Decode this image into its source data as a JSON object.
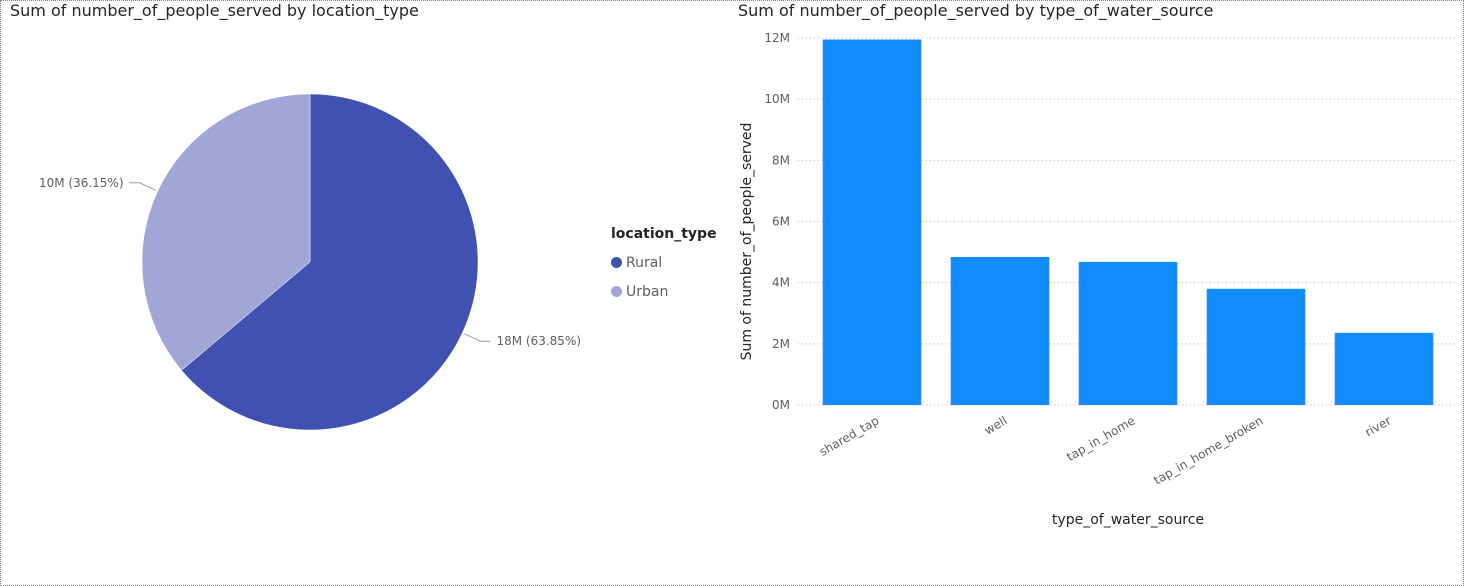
{
  "charts": [
    {
      "title": "Sum of number_of_people_served by location_type",
      "legend": {
        "title": "location_type"
      },
      "colors": [
        "#4051b1",
        "#a1a6d7"
      ]
    },
    {
      "title": "Sum of number_of_people_served by type_of_water_source",
      "bar_color": "#118dff",
      "grid_color": "#e8a0a0"
    }
  ],
  "chart_data": [
    {
      "type": "pie",
      "title": "Sum of number_of_people_served by location_type",
      "legend_title": "location_type",
      "legend_position": "right",
      "slices": [
        {
          "label": "Rural",
          "value": 18000000,
          "percent": 63.85,
          "data_label": "18M (63.85%)",
          "color": "#4051b1"
        },
        {
          "label": "Urban",
          "value": 10000000,
          "percent": 36.15,
          "data_label": "10M (36.15%)",
          "color": "#a1a6d7"
        }
      ]
    },
    {
      "type": "bar",
      "title": "Sum of number_of_people_served by type_of_water_source",
      "xlabel": "type_of_water_source",
      "ylabel": "Sum of number_of_people_served",
      "categories": [
        "shared_tap",
        "well",
        "tap_in_home",
        "tap_in_home_broken",
        "river"
      ],
      "values": [
        11950000,
        4840000,
        4680000,
        3800000,
        2360000
      ],
      "ylim": [
        0,
        12000000
      ],
      "yticks": [
        0,
        2000000,
        4000000,
        6000000,
        8000000,
        10000000,
        12000000
      ],
      "ytick_labels": [
        "0M",
        "2M",
        "4M",
        "6M",
        "8M",
        "10M",
        "12M"
      ],
      "grid": true
    }
  ]
}
